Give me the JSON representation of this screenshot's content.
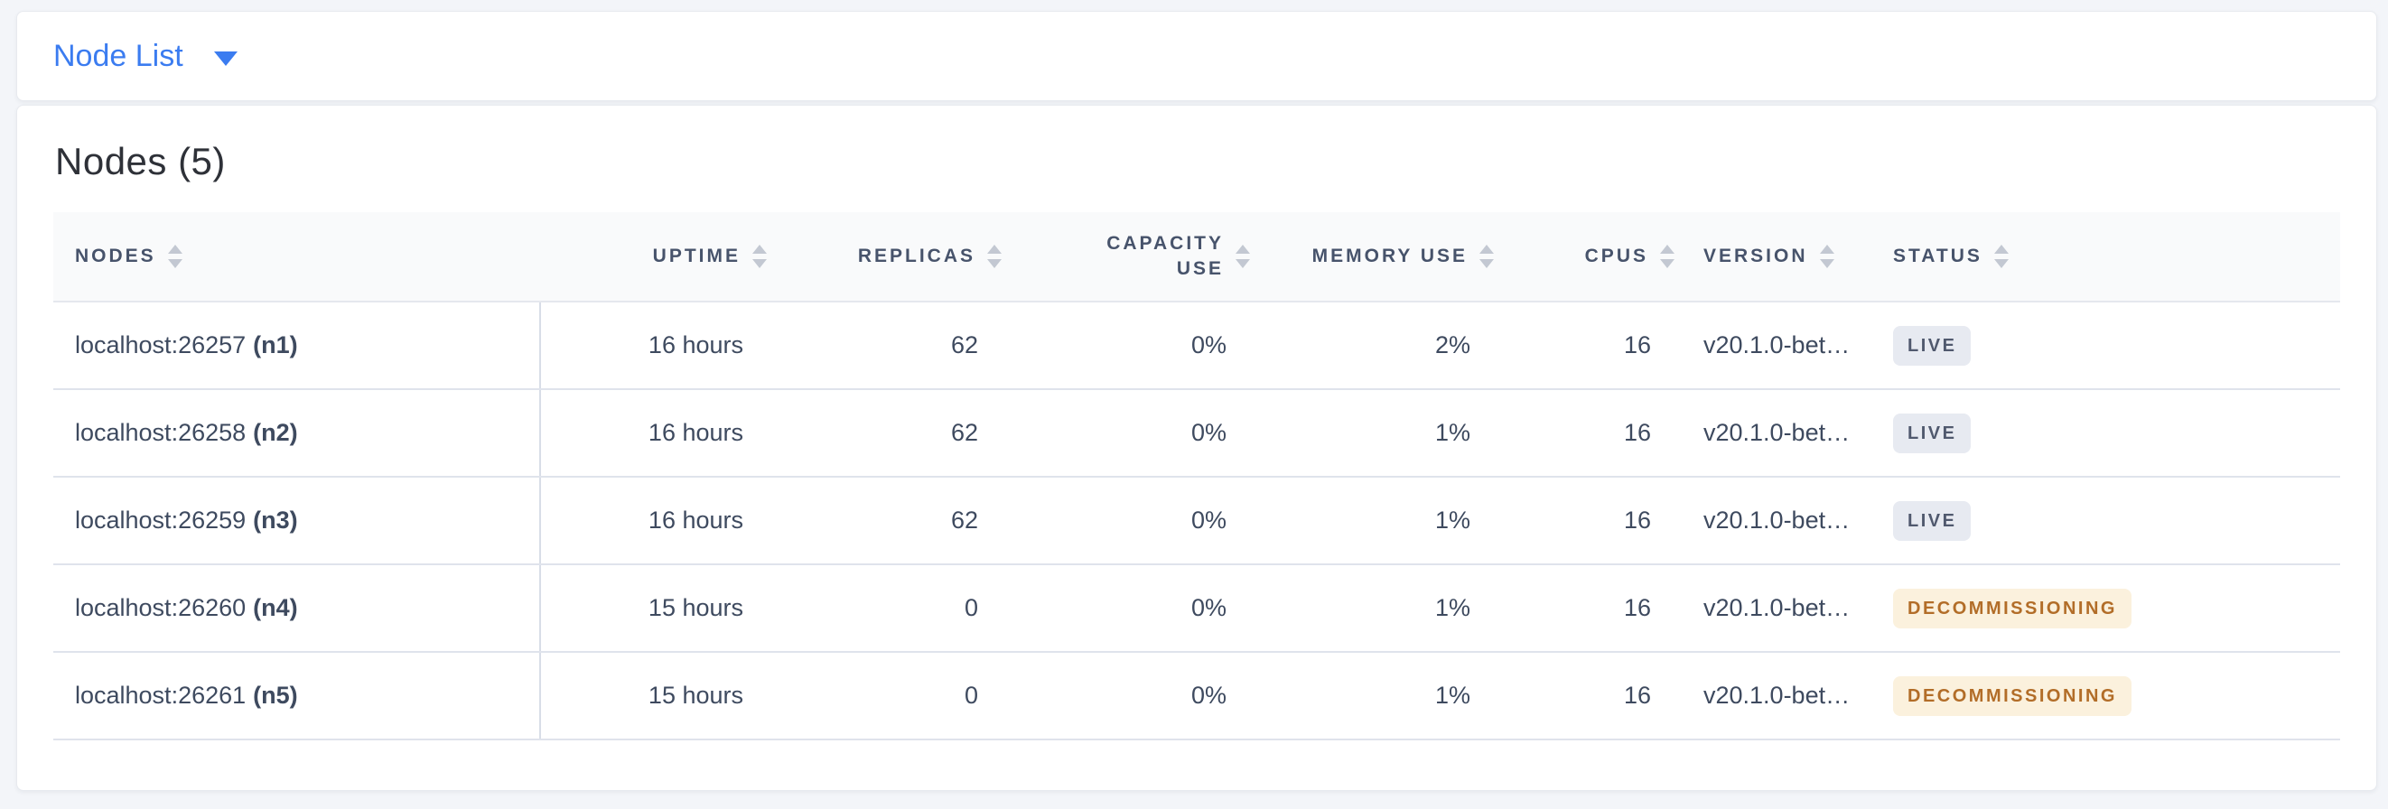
{
  "topbar": {
    "dropdown_label": "Node List"
  },
  "main": {
    "title": "Nodes (5)"
  },
  "table": {
    "columns": [
      {
        "label": "NODES",
        "align": "left",
        "sortable": true
      },
      {
        "label": "UPTIME",
        "align": "right",
        "sortable": true
      },
      {
        "label": "REPLICAS",
        "align": "right",
        "sortable": true
      },
      {
        "label": "CAPACITY USE",
        "align": "right",
        "sortable": true
      },
      {
        "label": "MEMORY USE",
        "align": "right",
        "sortable": true
      },
      {
        "label": "CPUS",
        "align": "right",
        "sortable": true
      },
      {
        "label": "VERSION",
        "align": "left",
        "sortable": true
      },
      {
        "label": "STATUS",
        "align": "left",
        "sortable": true
      }
    ],
    "rows": [
      {
        "address": "localhost:26257",
        "id": "(n1)",
        "uptime": "16 hours",
        "replicas": "62",
        "capacity_use": "0%",
        "memory_use": "2%",
        "cpus": "16",
        "version": "v20.1.0-bet…",
        "status": "LIVE",
        "status_type": "live"
      },
      {
        "address": "localhost:26258",
        "id": "(n2)",
        "uptime": "16 hours",
        "replicas": "62",
        "capacity_use": "0%",
        "memory_use": "1%",
        "cpus": "16",
        "version": "v20.1.0-bet…",
        "status": "LIVE",
        "status_type": "live"
      },
      {
        "address": "localhost:26259",
        "id": "(n3)",
        "uptime": "16 hours",
        "replicas": "62",
        "capacity_use": "0%",
        "memory_use": "1%",
        "cpus": "16",
        "version": "v20.1.0-bet…",
        "status": "LIVE",
        "status_type": "live"
      },
      {
        "address": "localhost:26260",
        "id": "(n4)",
        "uptime": "15 hours",
        "replicas": "0",
        "capacity_use": "0%",
        "memory_use": "1%",
        "cpus": "16",
        "version": "v20.1.0-bet…",
        "status": "DECOMMISSIONING",
        "status_type": "decommissioning"
      },
      {
        "address": "localhost:26261",
        "id": "(n5)",
        "uptime": "15 hours",
        "replicas": "0",
        "capacity_use": "0%",
        "memory_use": "1%",
        "cpus": "16",
        "version": "v20.1.0-bet…",
        "status": "DECOMMISSIONING",
        "status_type": "decommissioning"
      }
    ]
  },
  "icons": {
    "dropdown_caret": "chevron-down-icon",
    "column_sort": "sort-arrows-icon"
  },
  "colors": {
    "accent_blue": "#3b7cf0",
    "page_background": "#f3f5f9",
    "header_text": "#47536b",
    "cell_text": "#3e4a5f",
    "live_badge_bg": "#e7eaf1",
    "live_badge_text": "#50596e",
    "decommissioning_badge_bg": "#fbf1dd",
    "decommissioning_badge_text": "#b26d28"
  }
}
